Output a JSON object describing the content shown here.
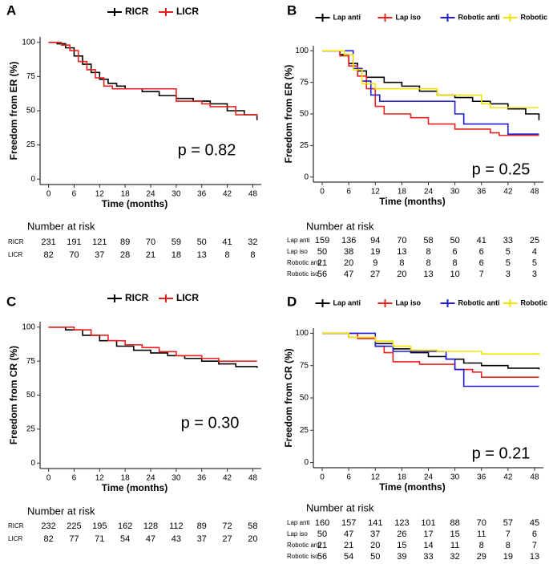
{
  "chart_data": [
    {
      "panel": "A",
      "type": "line",
      "step": true,
      "legend": "top",
      "x_label": "Time (months)",
      "y_label": "Freedom from ER (%)",
      "p_value": "p = 0.82",
      "xlim": [
        -2,
        50
      ],
      "ylim": [
        -4,
        104
      ],
      "xticks": [
        0,
        6,
        12,
        18,
        24,
        30,
        36,
        42,
        48
      ],
      "yticks": [
        0,
        25,
        50,
        75,
        100
      ],
      "series": [
        {
          "name": "RICR",
          "color": "#000000",
          "x": [
            0,
            2,
            4,
            6,
            8,
            10,
            12,
            14,
            16,
            18,
            22,
            26,
            30,
            34,
            38,
            42,
            46,
            49
          ],
          "values": [
            100,
            99,
            96,
            90,
            84,
            78,
            73,
            70,
            68,
            66,
            64,
            61,
            59,
            57,
            55,
            50,
            47,
            43
          ]
        },
        {
          "name": "LICR",
          "color": "#e8221f",
          "x": [
            0,
            3,
            5,
            7,
            9,
            11,
            13,
            15,
            30,
            36,
            38,
            44,
            49
          ],
          "values": [
            100,
            98,
            94,
            86,
            80,
            74,
            68,
            66,
            57,
            55,
            53,
            47,
            46
          ]
        }
      ],
      "risk_table": {
        "title": "Number at risk",
        "rows": [
          {
            "name": "RICR",
            "color": "#000000",
            "values": [
              231,
              191,
              121,
              89,
              70,
              59,
              50,
              41,
              32
            ]
          },
          {
            "name": "LICR",
            "color": "#e8221f",
            "values": [
              82,
              70,
              37,
              28,
              21,
              18,
              13,
              8,
              8
            ]
          }
        ]
      }
    },
    {
      "panel": "B",
      "type": "line",
      "step": true,
      "legend": "top",
      "x_label": "Time (months)",
      "y_label": "Freedom from ER (%)",
      "p_value": "p = 0.25",
      "xlim": [
        -2,
        50
      ],
      "ylim": [
        -4,
        104
      ],
      "xticks": [
        0,
        6,
        12,
        18,
        24,
        30,
        36,
        42,
        48
      ],
      "yticks": [
        0,
        25,
        50,
        75,
        100
      ],
      "series": [
        {
          "name": "Lap anti",
          "color": "#000000",
          "x": [
            0,
            4,
            6,
            8,
            10,
            14,
            18,
            22,
            26,
            30,
            34,
            38,
            42,
            46,
            49
          ],
          "values": [
            100,
            97,
            90,
            84,
            79,
            75,
            72,
            68,
            65,
            63,
            60,
            58,
            54,
            50,
            45
          ]
        },
        {
          "name": "Lap iso",
          "color": "#e8221f",
          "x": [
            0,
            4,
            6,
            8,
            10,
            12,
            14,
            20,
            24,
            30,
            38,
            40,
            49
          ],
          "values": [
            100,
            96,
            88,
            80,
            70,
            56,
            50,
            47,
            42,
            38,
            35,
            33,
            33
          ]
        },
        {
          "name": "Robotic anti",
          "color": "#1f1fd6",
          "x": [
            0,
            7,
            9,
            11,
            13,
            30,
            32,
            42,
            49
          ],
          "values": [
            100,
            86,
            76,
            65,
            60,
            50,
            42,
            34,
            34
          ]
        },
        {
          "name": "Robotic iso",
          "color": "#f2e600",
          "x": [
            0,
            5,
            7,
            9,
            12,
            26,
            36,
            38,
            49
          ],
          "values": [
            100,
            97,
            85,
            74,
            70,
            65,
            58,
            55,
            55
          ]
        }
      ],
      "risk_table": {
        "title": "Number at risk",
        "rows": [
          {
            "name": "Lap anti",
            "color": "#000000",
            "values": [
              159,
              136,
              94,
              70,
              58,
              50,
              41,
              33,
              25
            ]
          },
          {
            "name": "Lap iso",
            "color": "#e8221f",
            "values": [
              50,
              38,
              19,
              13,
              8,
              6,
              6,
              5,
              4
            ]
          },
          {
            "name": "Robotic anti",
            "color": "#1f1fd6",
            "values": [
              21,
              20,
              9,
              8,
              8,
              8,
              6,
              5,
              5
            ]
          },
          {
            "name": "Robotic iso",
            "color": "#f2e600",
            "values": [
              56,
              47,
              27,
              20,
              13,
              10,
              7,
              3,
              3
            ]
          }
        ]
      }
    },
    {
      "panel": "C",
      "type": "line",
      "step": true,
      "legend": "top",
      "x_label": "Time (months)",
      "y_label": "Freedom from CR (%)",
      "p_value": "p = 0.30",
      "xlim": [
        -2,
        50
      ],
      "ylim": [
        -4,
        104
      ],
      "xticks": [
        0,
        6,
        12,
        18,
        24,
        30,
        36,
        42,
        48
      ],
      "yticks": [
        0,
        25,
        50,
        75,
        100
      ],
      "series": [
        {
          "name": "RICR",
          "color": "#000000",
          "x": [
            0,
            4,
            8,
            12,
            16,
            20,
            24,
            28,
            32,
            36,
            40,
            44,
            49
          ],
          "values": [
            100,
            98,
            94,
            90,
            86,
            83,
            81,
            79,
            77,
            75,
            73,
            71,
            70
          ]
        },
        {
          "name": "LICR",
          "color": "#e8221f",
          "x": [
            0,
            6,
            10,
            14,
            18,
            22,
            26,
            30,
            36,
            40,
            49
          ],
          "values": [
            100,
            98,
            94,
            90,
            87,
            85,
            82,
            79,
            77,
            75,
            75
          ]
        }
      ],
      "risk_table": {
        "title": "Number at risk",
        "rows": [
          {
            "name": "RICR",
            "color": "#000000",
            "values": [
              232,
              225,
              195,
              162,
              128,
              112,
              89,
              72,
              58
            ]
          },
          {
            "name": "LICR",
            "color": "#e8221f",
            "values": [
              82,
              77,
              71,
              54,
              47,
              43,
              37,
              27,
              20
            ]
          }
        ]
      }
    },
    {
      "panel": "D",
      "type": "line",
      "step": true,
      "legend": "top",
      "x_label": "Time (months)",
      "y_label": "Freedom from CR (%)",
      "p_value": "p = 0.21",
      "xlim": [
        -2,
        50
      ],
      "ylim": [
        -4,
        104
      ],
      "xticks": [
        0,
        6,
        12,
        18,
        24,
        30,
        36,
        42,
        48
      ],
      "yticks": [
        0,
        25,
        50,
        75,
        100
      ],
      "series": [
        {
          "name": "Lap anti",
          "color": "#000000",
          "x": [
            0,
            6,
            12,
            16,
            20,
            24,
            28,
            32,
            36,
            42,
            49
          ],
          "values": [
            100,
            97,
            92,
            88,
            85,
            82,
            80,
            77,
            75,
            73,
            72
          ]
        },
        {
          "name": "Lap iso",
          "color": "#e8221f",
          "x": [
            0,
            8,
            12,
            14,
            16,
            22,
            30,
            34,
            36,
            49
          ],
          "values": [
            100,
            96,
            90,
            85,
            78,
            76,
            72,
            70,
            66,
            66
          ]
        },
        {
          "name": "Robotic anti",
          "color": "#1f1fd6",
          "x": [
            0,
            12,
            16,
            28,
            30,
            32,
            49
          ],
          "values": [
            100,
            90,
            86,
            80,
            72,
            59,
            59
          ]
        },
        {
          "name": "Robotic iso",
          "color": "#f2e600",
          "x": [
            0,
            6,
            12,
            16,
            20,
            26,
            36,
            49
          ],
          "values": [
            100,
            97,
            94,
            90,
            87,
            86,
            84,
            83
          ]
        }
      ],
      "risk_table": {
        "title": "Number at risk",
        "rows": [
          {
            "name": "Lap anti",
            "color": "#000000",
            "values": [
              160,
              157,
              141,
              123,
              101,
              88,
              70,
              57,
              45
            ]
          },
          {
            "name": "Lap iso",
            "color": "#e8221f",
            "values": [
              50,
              47,
              37,
              26,
              17,
              15,
              11,
              7,
              6
            ]
          },
          {
            "name": "Robotic anti",
            "color": "#1f1fd6",
            "values": [
              21,
              21,
              20,
              15,
              14,
              11,
              8,
              8,
              7
            ]
          },
          {
            "name": "Robotic iso",
            "color": "#f2e600",
            "values": [
              56,
              54,
              50,
              39,
              33,
              32,
              29,
              19,
              13
            ]
          }
        ]
      }
    }
  ]
}
